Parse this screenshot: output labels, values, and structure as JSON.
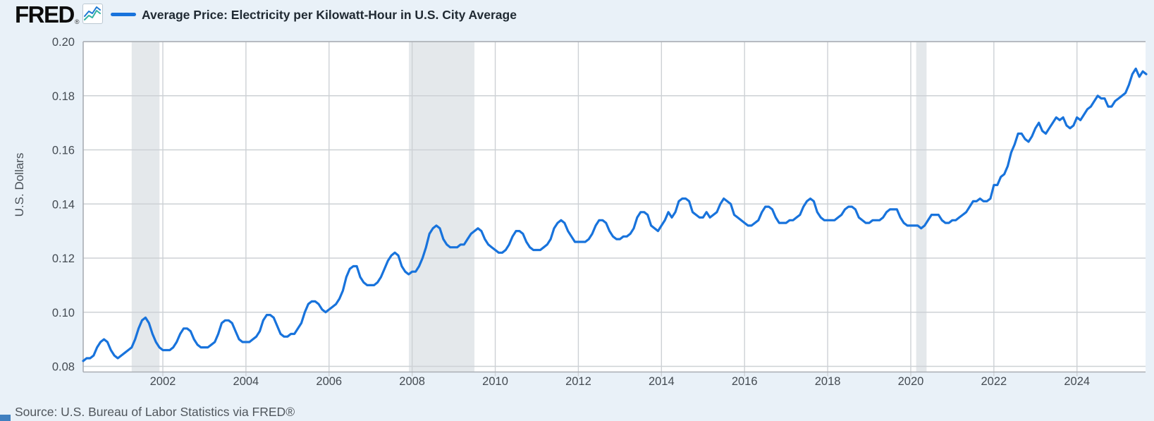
{
  "header": {
    "logo_text": "FRED",
    "logo_registered": "®",
    "sparkline_icon": "fred-sparkline-icon",
    "series_title": "Average Price: Electricity per Kilowatt-Hour in U.S. City Average"
  },
  "footer": {
    "source": "Source: U.S. Bureau of Labor Statistics via FRED®"
  },
  "colors": {
    "page_bg": "#e9f1f8",
    "plot_bg": "#ffffff",
    "line": "#1873dc",
    "grid": "#cdd1d5",
    "axis_border": "#a9aeb4",
    "recession_band": "#e4e8eb",
    "tick_text": "#444b52",
    "title_text": "#202a33",
    "source_text": "#50565c",
    "corner_accent": "#4180c0",
    "sparkline_blue": "#1d7ad4",
    "sparkline_teal": "#34b3a0"
  },
  "chart_data": {
    "type": "line",
    "title": "Average Price: Electricity per Kilowatt-Hour in U.S. City Average",
    "xlabel": "",
    "ylabel": "U.S. Dollars",
    "ylim": [
      0.078,
      0.2
    ],
    "xlim_years": [
      2000.083,
      2025.65
    ],
    "y_ticks": [
      0.2,
      0.18,
      0.16,
      0.14,
      0.12,
      0.1,
      0.08
    ],
    "y_tick_labels": [
      "0.20",
      "0.18",
      "0.16",
      "0.14",
      "0.12",
      "0.10",
      "0.08"
    ],
    "x_ticks": [
      2002,
      2004,
      2006,
      2008,
      2010,
      2012,
      2014,
      2016,
      2018,
      2020,
      2022,
      2024
    ],
    "x_tick_labels": [
      "2002",
      "2004",
      "2006",
      "2008",
      "2010",
      "2012",
      "2014",
      "2016",
      "2018",
      "2020",
      "2022",
      "2024"
    ],
    "grid": true,
    "legend_position": "top-left",
    "recession_bands_years": [
      [
        2001.25,
        2001.92
      ],
      [
        2007.92,
        2009.5
      ],
      [
        2020.13,
        2020.38
      ]
    ],
    "line_width": 3.2,
    "series": [
      {
        "name": "Average Price: Electricity per Kilowatt-Hour in U.S. City Average",
        "color": "#1873dc",
        "frequency": "monthly",
        "start": "2000-02",
        "end": "2025-09",
        "values": [
          0.082,
          0.083,
          0.083,
          0.084,
          0.087,
          0.089,
          0.09,
          0.089,
          0.086,
          0.084,
          0.083,
          0.084,
          0.085,
          0.086,
          0.087,
          0.09,
          0.094,
          0.097,
          0.098,
          0.096,
          0.092,
          0.089,
          0.087,
          0.086,
          0.086,
          0.086,
          0.087,
          0.089,
          0.092,
          0.094,
          0.094,
          0.093,
          0.09,
          0.088,
          0.087,
          0.087,
          0.087,
          0.088,
          0.089,
          0.092,
          0.096,
          0.097,
          0.097,
          0.096,
          0.093,
          0.09,
          0.089,
          0.089,
          0.089,
          0.09,
          0.091,
          0.093,
          0.097,
          0.099,
          0.099,
          0.098,
          0.095,
          0.092,
          0.091,
          0.091,
          0.092,
          0.092,
          0.094,
          0.096,
          0.1,
          0.103,
          0.104,
          0.104,
          0.103,
          0.101,
          0.1,
          0.101,
          0.102,
          0.103,
          0.105,
          0.108,
          0.113,
          0.116,
          0.117,
          0.117,
          0.113,
          0.111,
          0.11,
          0.11,
          0.11,
          0.111,
          0.113,
          0.116,
          0.119,
          0.121,
          0.122,
          0.121,
          0.117,
          0.115,
          0.114,
          0.115,
          0.115,
          0.117,
          0.12,
          0.124,
          0.129,
          0.131,
          0.132,
          0.131,
          0.127,
          0.125,
          0.124,
          0.124,
          0.124,
          0.125,
          0.125,
          0.127,
          0.129,
          0.13,
          0.131,
          0.13,
          0.127,
          0.125,
          0.124,
          0.123,
          0.122,
          0.122,
          0.123,
          0.125,
          0.128,
          0.13,
          0.13,
          0.129,
          0.126,
          0.124,
          0.123,
          0.123,
          0.123,
          0.124,
          0.125,
          0.127,
          0.131,
          0.133,
          0.134,
          0.133,
          0.13,
          0.128,
          0.126,
          0.126,
          0.126,
          0.126,
          0.127,
          0.129,
          0.132,
          0.134,
          0.134,
          0.133,
          0.13,
          0.128,
          0.127,
          0.127,
          0.128,
          0.128,
          0.129,
          0.131,
          0.135,
          0.137,
          0.137,
          0.136,
          0.132,
          0.131,
          0.13,
          0.132,
          0.134,
          0.137,
          0.135,
          0.137,
          0.141,
          0.142,
          0.142,
          0.141,
          0.137,
          0.136,
          0.135,
          0.135,
          0.137,
          0.135,
          0.136,
          0.137,
          0.14,
          0.142,
          0.141,
          0.14,
          0.136,
          0.135,
          0.134,
          0.133,
          0.132,
          0.132,
          0.133,
          0.134,
          0.137,
          0.139,
          0.139,
          0.138,
          0.135,
          0.133,
          0.133,
          0.133,
          0.134,
          0.134,
          0.135,
          0.136,
          0.139,
          0.141,
          0.142,
          0.141,
          0.137,
          0.135,
          0.134,
          0.134,
          0.134,
          0.134,
          0.135,
          0.136,
          0.138,
          0.139,
          0.139,
          0.138,
          0.135,
          0.134,
          0.133,
          0.133,
          0.134,
          0.134,
          0.134,
          0.135,
          0.137,
          0.138,
          0.138,
          0.138,
          0.135,
          0.133,
          0.132,
          0.132,
          0.132,
          0.132,
          0.131,
          0.132,
          0.134,
          0.136,
          0.136,
          0.136,
          0.134,
          0.133,
          0.133,
          0.134,
          0.134,
          0.135,
          0.136,
          0.137,
          0.139,
          0.141,
          0.141,
          0.142,
          0.141,
          0.141,
          0.142,
          0.147,
          0.147,
          0.15,
          0.151,
          0.154,
          0.159,
          0.162,
          0.166,
          0.166,
          0.164,
          0.163,
          0.165,
          0.168,
          0.17,
          0.167,
          0.166,
          0.168,
          0.17,
          0.172,
          0.171,
          0.172,
          0.169,
          0.168,
          0.169,
          0.172,
          0.171,
          0.173,
          0.175,
          0.176,
          0.178,
          0.18,
          0.179,
          0.179,
          0.176,
          0.176,
          0.178,
          0.179,
          0.18,
          0.181,
          0.184,
          0.188,
          0.19,
          0.187,
          0.189,
          0.188
        ]
      }
    ]
  }
}
